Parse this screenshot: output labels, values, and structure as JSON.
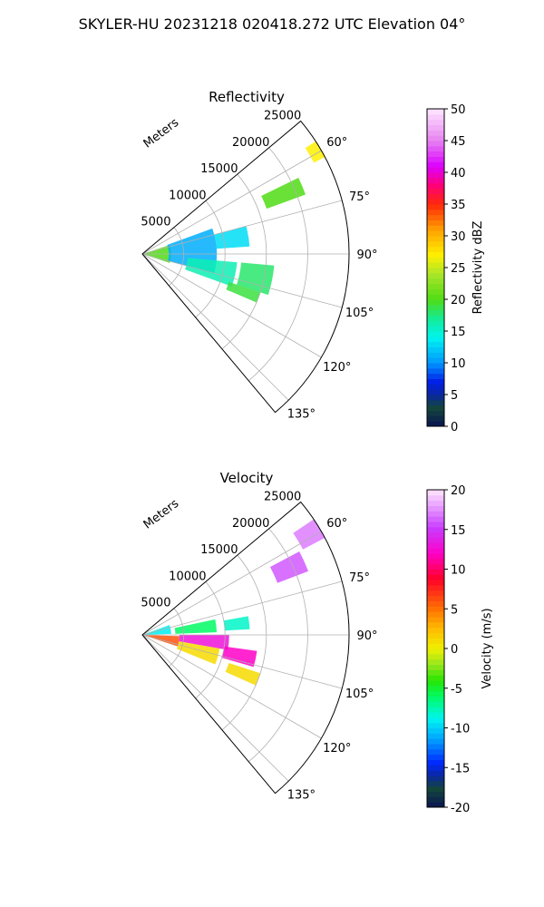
{
  "suptitle": "SKYLER-HU  20231218  020418.272 UTC Elevation 04°",
  "panels": [
    {
      "title": "Reflectivity",
      "radial_label": "Meters",
      "radial_ticks": [
        "5000",
        "10000",
        "15000",
        "20000",
        "25000"
      ],
      "angle_ticks": [
        "60°",
        "75°",
        "90°",
        "105°",
        "120°",
        "135°"
      ],
      "colorbar": {
        "label": "Reflectivity dBZ",
        "ticks": [
          "0",
          "5",
          "10",
          "15",
          "20",
          "25",
          "30",
          "35",
          "40",
          "45",
          "50"
        ],
        "min": 0,
        "max": 50
      }
    },
    {
      "title": "Velocity",
      "radial_label": "Meters",
      "radial_ticks": [
        "5000",
        "10000",
        "15000",
        "20000",
        "25000"
      ],
      "angle_ticks": [
        "60°",
        "75°",
        "90°",
        "105°",
        "120°",
        "135°"
      ],
      "colorbar": {
        "label": "Velocity (m/s)",
        "ticks": [
          "-20",
          "-15",
          "-10",
          "-5",
          "0",
          "5",
          "10",
          "15",
          "20"
        ],
        "min": -20,
        "max": 20
      }
    }
  ],
  "chart_data": [
    {
      "type": "heatmap",
      "projection": "polar-sector",
      "title": "Reflectivity",
      "azimuth_range_deg": [
        50,
        140
      ],
      "range_limits_m": [
        0,
        25000
      ],
      "range_ticks_m": [
        5000,
        10000,
        15000,
        20000,
        25000
      ],
      "azimuth_ticks_deg": [
        60,
        75,
        90,
        105,
        120,
        135
      ],
      "colorbar_range": [
        0,
        50
      ],
      "regions": [
        {
          "az": [
            72,
            108
          ],
          "r": [
            0,
            3500
          ],
          "value": 20
        },
        {
          "az": [
            70,
            105
          ],
          "r": [
            3200,
            9000
          ],
          "value": 11
        },
        {
          "az": [
            95,
            110
          ],
          "r": [
            5500,
            11500
          ],
          "value": 16
        },
        {
          "az": [
            75,
            86
          ],
          "r": [
            9000,
            13000
          ],
          "value": 13
        },
        {
          "az": [
            95,
            108
          ],
          "r": [
            12000,
            16000
          ],
          "value": 18
        },
        {
          "az": [
            108,
            113
          ],
          "r": [
            11000,
            15000
          ],
          "value": 19
        },
        {
          "az": [
            64,
            70
          ],
          "r": [
            16000,
            21000
          ],
          "value": 20
        },
        {
          "az": [
            57,
            62
          ],
          "r": [
            23500,
            25000
          ],
          "value": 27
        }
      ]
    },
    {
      "type": "heatmap",
      "projection": "polar-sector",
      "title": "Velocity",
      "azimuth_range_deg": [
        50,
        140
      ],
      "range_limits_m": [
        0,
        25000
      ],
      "range_ticks_m": [
        5000,
        10000,
        15000,
        20000,
        25000
      ],
      "azimuth_ticks_deg": [
        60,
        75,
        90,
        105,
        120,
        135
      ],
      "colorbar_range": [
        -20,
        20
      ],
      "regions": [
        {
          "az": [
            70,
            88
          ],
          "r": [
            0,
            3500
          ],
          "value": -9
        },
        {
          "az": [
            92,
            108
          ],
          "r": [
            0,
            4500
          ],
          "value": 6
        },
        {
          "az": [
            78,
            88
          ],
          "r": [
            4000,
            9000
          ],
          "value": -6
        },
        {
          "az": [
            90,
            100
          ],
          "r": [
            4500,
            10500
          ],
          "value": 13
        },
        {
          "az": [
            100,
            112
          ],
          "r": [
            4500,
            9500
          ],
          "value": 1
        },
        {
          "az": [
            98,
            106
          ],
          "r": [
            10000,
            14000
          ],
          "value": 12
        },
        {
          "az": [
            80,
            87
          ],
          "r": [
            10000,
            13000
          ],
          "value": -8
        },
        {
          "az": [
            62,
            69
          ],
          "r": [
            17500,
            21500
          ],
          "value": 16
        },
        {
          "az": [
            56,
            62
          ],
          "r": [
            22000,
            25000
          ],
          "value": 17
        },
        {
          "az": [
            108,
            114
          ],
          "r": [
            11000,
            15000
          ],
          "value": 1
        }
      ]
    }
  ]
}
